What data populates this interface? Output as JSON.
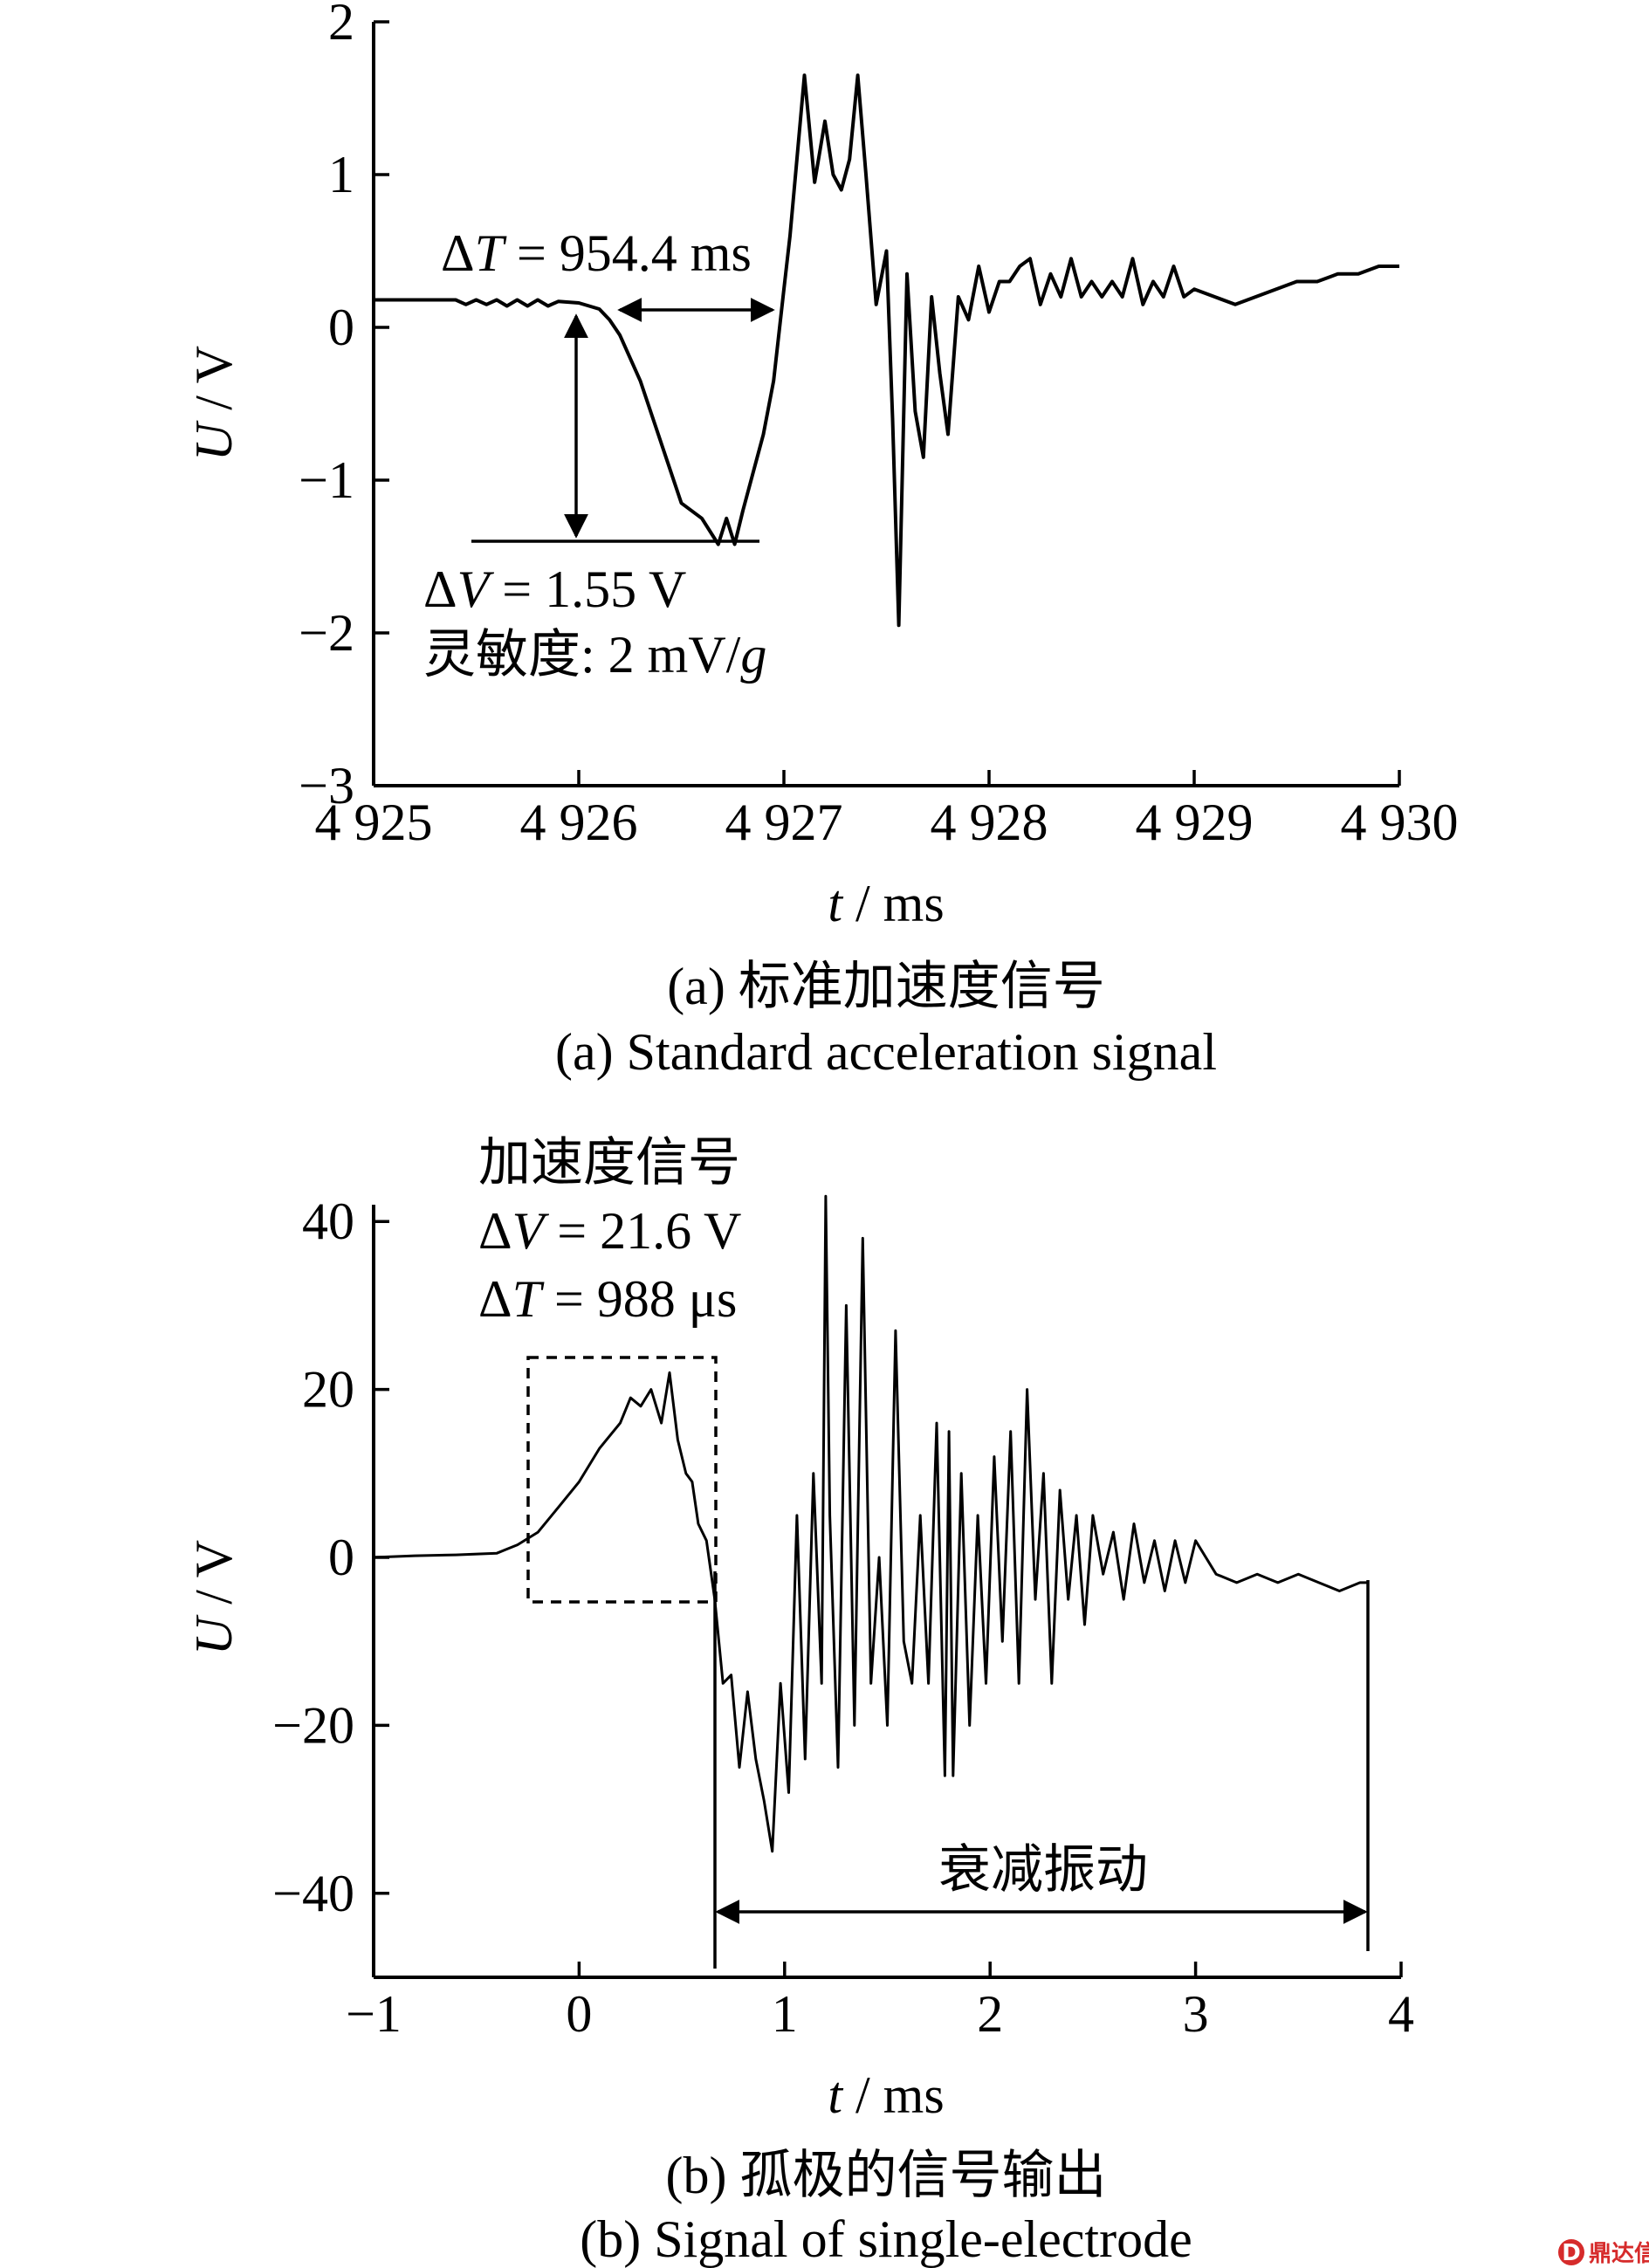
{
  "chart_data": [
    {
      "type": "line",
      "panel": "a",
      "xlabel_var": "t",
      "xlabel_unit": " / ms",
      "ylabel_var": "U",
      "ylabel_unit": " / V",
      "xlim": [
        4925,
        4930
      ],
      "ylim": [
        -3,
        2
      ],
      "xticks": [
        {
          "value": 4925,
          "label": "4 925"
        },
        {
          "value": 4926,
          "label": "4 926"
        },
        {
          "value": 4927,
          "label": "4 927"
        },
        {
          "value": 4928,
          "label": "4 928"
        },
        {
          "value": 4929,
          "label": "4 929"
        },
        {
          "value": 4930,
          "label": "4 930"
        }
      ],
      "yticks": [
        {
          "value": 2,
          "label": "2"
        },
        {
          "value": 1,
          "label": "1"
        },
        {
          "value": 0,
          "label": "0"
        },
        {
          "value": -1,
          "label": "−1"
        },
        {
          "value": -2,
          "label": "−2"
        },
        {
          "value": -3,
          "label": "−3"
        }
      ],
      "series": [
        {
          "x": [
            4925.0,
            4925.4,
            4925.45,
            4925.5,
            4925.55,
            4925.6,
            4925.65,
            4925.7,
            4925.75,
            4925.8,
            4925.85,
            4925.9,
            4926.0,
            4926.05,
            4926.1,
            4926.15,
            4926.2,
            4926.3,
            4926.4,
            4926.5,
            4926.6,
            4926.68,
            4926.72,
            4926.76,
            4926.8,
            4926.9,
            4926.95,
            4927.0,
            4927.03,
            4927.06,
            4927.1,
            4927.15,
            4927.2,
            4927.24,
            4927.28,
            4927.32,
            4927.36,
            4927.4,
            4927.45,
            4927.5,
            4927.53,
            4927.56,
            4927.6,
            4927.64,
            4927.68,
            4927.72,
            4927.76,
            4927.8,
            4927.85,
            4927.9,
            4927.95,
            4928.0,
            4928.05,
            4928.1,
            4928.15,
            4928.2,
            4928.25,
            4928.3,
            4928.35,
            4928.4,
            4928.45,
            4928.5,
            4928.55,
            4928.6,
            4928.65,
            4928.7,
            4928.75,
            4928.8,
            4928.85,
            4928.9,
            4928.95,
            4929.0,
            4929.1,
            4929.2,
            4929.3,
            4929.4,
            4929.5,
            4929.6,
            4929.7,
            4929.8,
            4929.9,
            4930.0
          ],
          "y": [
            0.18,
            0.18,
            0.15,
            0.18,
            0.15,
            0.18,
            0.14,
            0.18,
            0.14,
            0.18,
            0.14,
            0.17,
            0.16,
            0.14,
            0.12,
            0.05,
            -0.05,
            -0.35,
            -0.75,
            -1.15,
            -1.25,
            -1.42,
            -1.25,
            -1.42,
            -1.2,
            -0.7,
            -0.35,
            0.25,
            0.6,
            1.05,
            1.65,
            0.95,
            1.35,
            1.0,
            0.9,
            1.1,
            1.65,
            1.0,
            0.15,
            0.5,
            -0.6,
            -1.95,
            0.35,
            -0.55,
            -0.85,
            0.2,
            -0.3,
            -0.7,
            0.2,
            0.05,
            0.4,
            0.1,
            0.3,
            0.3,
            0.4,
            0.45,
            0.15,
            0.35,
            0.2,
            0.45,
            0.2,
            0.3,
            0.2,
            0.3,
            0.2,
            0.45,
            0.15,
            0.3,
            0.2,
            0.4,
            0.2,
            0.25,
            0.2,
            0.15,
            0.2,
            0.25,
            0.3,
            0.3,
            0.35,
            0.35,
            0.4,
            0.4
          ]
        }
      ],
      "annotations": {
        "dT_sym": "Δ",
        "dT_var": "T",
        "dT_text": " = 954.4 ms",
        "dV_sym": "Δ",
        "dV_var": "V",
        "dV_text": " = 1.55 V",
        "sens_text": "灵敏度: 2 mV/",
        "sens_var": "g"
      },
      "caption_cn": "(a)  标准加速度信号",
      "caption_en": "(a)  Standard acceleration signal"
    },
    {
      "type": "line",
      "panel": "b",
      "xlabel_var": "t",
      "xlabel_unit": " / ms",
      "ylabel_var": "U",
      "ylabel_unit": " / V",
      "xlim": [
        -1,
        4
      ],
      "ylim": [
        -50,
        50
      ],
      "xticks": [
        {
          "value": -1,
          "label": "−1"
        },
        {
          "value": 0,
          "label": "0"
        },
        {
          "value": 1,
          "label": "1"
        },
        {
          "value": 2,
          "label": "2"
        },
        {
          "value": 3,
          "label": "3"
        },
        {
          "value": 4,
          "label": "4"
        }
      ],
      "yticks": [
        {
          "value": 40,
          "label": "40"
        },
        {
          "value": 20,
          "label": "20"
        },
        {
          "value": 0,
          "label": "0"
        },
        {
          "value": -20,
          "label": "−20"
        },
        {
          "value": -40,
          "label": "−40"
        }
      ],
      "series": [
        {
          "x": [
            -1.0,
            -0.8,
            -0.6,
            -0.4,
            -0.35,
            -0.3,
            -0.2,
            -0.1,
            0.0,
            0.1,
            0.2,
            0.25,
            0.3,
            0.35,
            0.4,
            0.44,
            0.48,
            0.52,
            0.55,
            0.58,
            0.62,
            0.66,
            0.68,
            0.7,
            0.74,
            0.78,
            0.82,
            0.86,
            0.9,
            0.94,
            0.98,
            1.02,
            1.06,
            1.1,
            1.14,
            1.18,
            1.2,
            1.22,
            1.26,
            1.3,
            1.34,
            1.38,
            1.42,
            1.46,
            1.5,
            1.54,
            1.58,
            1.62,
            1.66,
            1.7,
            1.74,
            1.78,
            1.8,
            1.82,
            1.86,
            1.9,
            1.94,
            1.98,
            2.02,
            2.06,
            2.1,
            2.14,
            2.18,
            2.22,
            2.26,
            2.3,
            2.34,
            2.38,
            2.42,
            2.46,
            2.5,
            2.55,
            2.6,
            2.65,
            2.7,
            2.75,
            2.8,
            2.85,
            2.9,
            2.95,
            3.0,
            3.1,
            3.2,
            3.3,
            3.4,
            3.5,
            3.6,
            3.7,
            3.8,
            3.84
          ],
          "y": [
            0.0,
            0.2,
            0.3,
            0.5,
            1.0,
            1.5,
            3.0,
            6.0,
            9.0,
            13.0,
            16.0,
            19.0,
            18.0,
            20.0,
            16.0,
            22.0,
            14.0,
            10.0,
            9.0,
            4.0,
            2.0,
            -5.0,
            -10.0,
            -15.0,
            -14.0,
            -25.0,
            -16.0,
            -24.0,
            -29.0,
            -35.0,
            -15.0,
            -28.0,
            5.0,
            -24.0,
            10.0,
            -15.0,
            43.0,
            5.0,
            -25.0,
            30.0,
            -20.0,
            38.0,
            -15.0,
            0.0,
            -20.0,
            27.0,
            -10.0,
            -15.0,
            5.0,
            -15.0,
            16.0,
            -26.0,
            15.0,
            -26.0,
            10.0,
            -20.0,
            5.0,
            -15.0,
            12.0,
            -10.0,
            15.0,
            -15.0,
            20.0,
            -5.0,
            10.0,
            -15.0,
            8.0,
            -5.0,
            5.0,
            -8.0,
            5.0,
            -2.0,
            3.0,
            -5.0,
            4.0,
            -3.0,
            2.0,
            -4.0,
            2.0,
            -3.0,
            2.0,
            -2.0,
            -3.0,
            -2.0,
            -3.0,
            -2.0,
            -3.0,
            -4.0,
            -3.0,
            -3.0
          ]
        }
      ],
      "annotations": {
        "box_title": "加速度信号",
        "dV_sym": "Δ",
        "dV_var": "V",
        "dV_text": " = 21.6 V",
        "dT_sym": "Δ",
        "dT_var": "T",
        "dT_text": " = 988 μs",
        "decay_label": "衰减振动"
      },
      "caption_cn": "(b)  孤极的信号输出",
      "caption_en": "(b)  Signal of single-electrode"
    }
  ],
  "watermark": {
    "logo_text": "D",
    "label": "鼎达信"
  }
}
